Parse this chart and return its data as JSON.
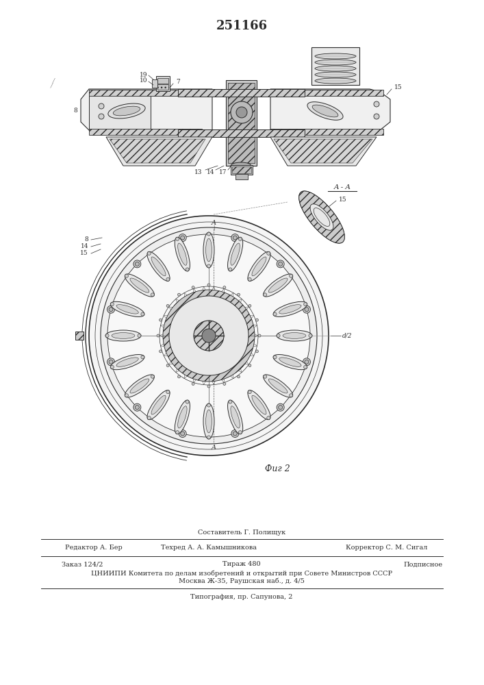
{
  "patent_number": "251166",
  "bg_color": "#ffffff",
  "line_color": "#2a2a2a",
  "fig2_label": "Фиг 2",
  "section_label": "A - A",
  "label_fontsize": 6.5,
  "footer_texts": {
    "composer": "Составитель Г. Полищук",
    "editor": "Редактор А. Бер",
    "techred": "Техред А. А. Камышникова",
    "corrector": "Корректор С. М. Сигал",
    "order": "Заказ 124/2",
    "tirazh": "Тираж 480",
    "podpisnoe": "Подписное",
    "tsniip": "ЦНИИПИ Комитета по делам изобретений и открытий при Совете Министров СССР",
    "moscow": "Москва Ж-35, Раушская наб., д. 4/5",
    "typography": "Типография, пр. Сапунова, 2"
  }
}
